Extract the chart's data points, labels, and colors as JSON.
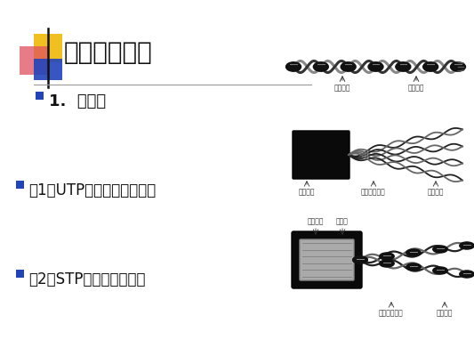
{
  "bg_color": "#ffffff",
  "title": "二、传输介质",
  "title_fontsize": 20,
  "title_color": "#111111",
  "line_color": "#999999",
  "bullet1_text": "1.  双绞线",
  "bullet1_fontsize": 13,
  "bullet2_text": "（1）UTP（非屏蔽双绞线）",
  "bullet2_fontsize": 12,
  "bullet3_text": "（2）STP（屏蔽双绞线）",
  "bullet3_fontsize": 12,
  "sq_yellow": "#f0c020",
  "sq_red": "#e05060",
  "sq_blue": "#2244bb",
  "bullet_color": "#2244bb",
  "label1a": "线缆外皮",
  "label1b": "铜芯导体",
  "label2a": "塑料护套",
  "label2b": "色标绝缘外皮",
  "label2c": "铜芯导体",
  "label3a": "塑料护套",
  "label3b": "屏蔽层",
  "label3c": "色标绝缘外皮",
  "label3d": "铜芯导体",
  "label_fontsize": 5.5
}
